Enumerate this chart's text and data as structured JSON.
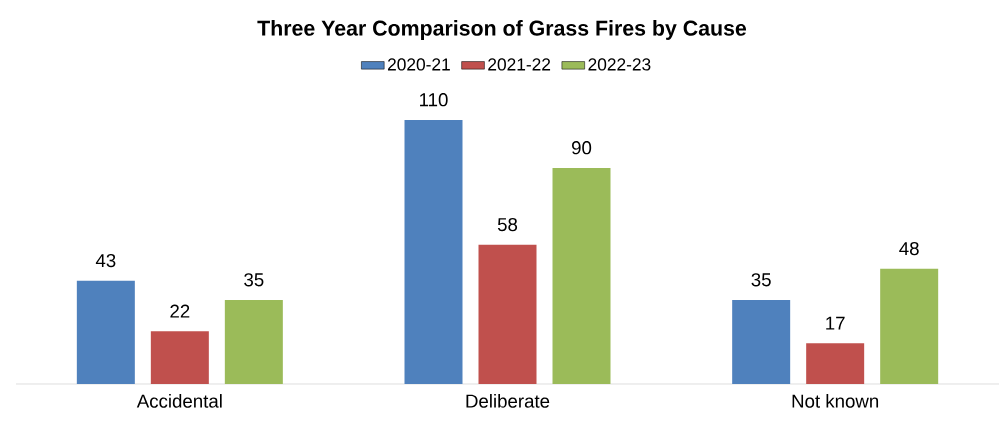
{
  "chart_data": {
    "type": "bar",
    "title": "Three Year Comparison of Grass Fires by Cause",
    "categories": [
      "Accidental",
      "Deliberate",
      "Not known"
    ],
    "series": [
      {
        "name": "2020-21",
        "color": "#4f81bd",
        "values": [
          43,
          110,
          35
        ]
      },
      {
        "name": "2021-22",
        "color": "#c0504d",
        "values": [
          22,
          58,
          17
        ]
      },
      {
        "name": "2022-23",
        "color": "#9bbb59",
        "values": [
          35,
          90,
          48
        ]
      }
    ],
    "data_labels": true,
    "legend": "top"
  }
}
